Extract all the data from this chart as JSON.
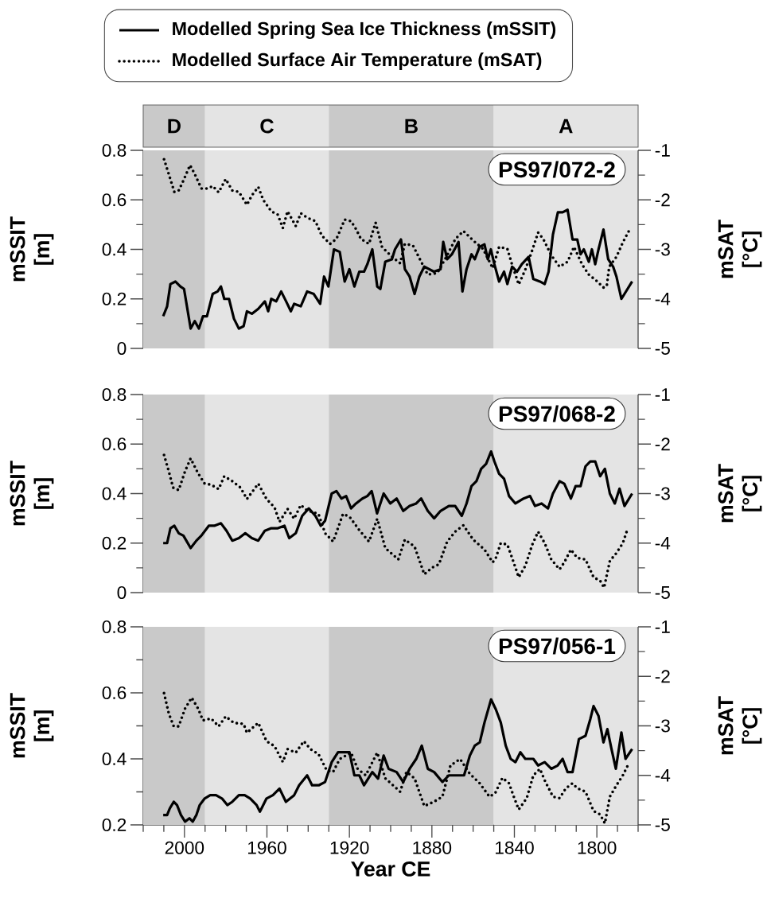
{
  "chart_data": [
    {
      "type": "line",
      "legend": "top",
      "tick_labels": "y",
      "ylabel": "mSSIT [m]",
      "y2label": "mSAT [°C]",
      "annotations": [
        "PS97/072-2"
      ],
      "xlim": [
        2020,
        1780
      ],
      "ylim": [
        0,
        0.8
      ],
      "y2lim": [
        -5,
        -1
      ],
      "yticks": [
        0,
        {
          "value": 0.1,
          "label": null
        },
        0.2,
        {
          "value": 0.3,
          "label": null
        },
        0.4,
        {
          "value": 0.5,
          "label": null
        },
        0.6,
        {
          "value": 0.7,
          "label": null
        },
        0.8
      ],
      "y2ticks": [
        -5,
        {
          "value": -4.5,
          "label": null
        },
        -4,
        {
          "value": -3.5,
          "label": null
        },
        -3,
        {
          "value": -2.5,
          "label": null
        },
        -2,
        {
          "value": -1.5,
          "label": null
        },
        -1
      ],
      "bands": [
        {
          "axis": "x",
          "from": 2020,
          "to": 1990,
          "label": "D",
          "color": "#c9c9c9"
        },
        {
          "axis": "x",
          "from": 1990,
          "to": 1930,
          "label": "C",
          "color": "#e4e4e4"
        },
        {
          "axis": "x",
          "from": 1930,
          "to": 1850,
          "label": "B",
          "color": "#c9c9c9"
        },
        {
          "axis": "x",
          "from": 1850,
          "to": 1780,
          "label": "A",
          "color": "#e4e4e4"
        }
      ],
      "series": [
        {
          "name": "Modelled Spring Sea Ice Thickness (mSSIT)",
          "color": "#000000",
          "line_style": "solid",
          "x": [
            2010.3,
            2008.4,
            2006.8,
            2004.4,
            2002.0,
            2000.2,
            1997.0,
            1995.0,
            1993.0,
            1991.0,
            1989.1,
            1986.3,
            1983.9,
            1982.3,
            1980.7,
            1978.4,
            1976.0,
            1973.6,
            1971.3,
            1969.7,
            1967.3,
            1964.2,
            1961.0,
            1959.4,
            1957.9,
            1955.5,
            1953.1,
            1950.7,
            1948.4,
            1946.8,
            1943.6,
            1940.5,
            1937.3,
            1934.2,
            1932.3,
            1930.2,
            1927.5,
            1924.7,
            1922.3,
            1920.0,
            1917.6,
            1915.2,
            1912.9,
            1911.3,
            1908.9,
            1906.5,
            1905.0,
            1902.6,
            1899.4,
            1897.9,
            1895.0,
            1893.1,
            1890.8,
            1888.4,
            1886.1,
            1883.7,
            1881.3,
            1879.0,
            1875.8,
            1874.5,
            1872.6,
            1870.3,
            1867.1,
            1865.2,
            1863.2,
            1860.8,
            1859.2,
            1856.9,
            1854.5,
            1852.9,
            1851.4,
            1849.7,
            1847.4,
            1845.0,
            1843.4,
            1841.1,
            1838.7,
            1836.4,
            1833.1,
            1830.8,
            1827.6,
            1825.3,
            1823.4,
            1821.3,
            1818.9,
            1816.6,
            1814.2,
            1811.8,
            1809.5,
            1807.9,
            1806.3,
            1803.9,
            1802.4,
            1800.8,
            1799.2,
            1796.8,
            1794.5,
            1792.1,
            1790.5,
            1788.1,
            1786.6,
            1782.9
          ],
          "values": [
            0.13,
            0.17,
            0.26,
            0.27,
            0.25,
            0.24,
            0.08,
            0.11,
            0.08,
            0.13,
            0.13,
            0.22,
            0.23,
            0.25,
            0.2,
            0.2,
            0.12,
            0.08,
            0.09,
            0.15,
            0.14,
            0.16,
            0.19,
            0.15,
            0.2,
            0.19,
            0.23,
            0.19,
            0.15,
            0.18,
            0.17,
            0.23,
            0.22,
            0.18,
            0.29,
            0.25,
            0.4,
            0.39,
            0.27,
            0.32,
            0.25,
            0.31,
            0.31,
            0.34,
            0.4,
            0.25,
            0.24,
            0.35,
            0.36,
            0.4,
            0.44,
            0.32,
            0.29,
            0.22,
            0.29,
            0.33,
            0.32,
            0.31,
            0.32,
            0.43,
            0.36,
            0.38,
            0.43,
            0.23,
            0.32,
            0.38,
            0.36,
            0.41,
            0.42,
            0.36,
            0.4,
            0.34,
            0.27,
            0.31,
            0.26,
            0.33,
            0.31,
            0.34,
            0.37,
            0.28,
            0.27,
            0.26,
            0.31,
            0.46,
            0.55,
            0.55,
            0.56,
            0.44,
            0.44,
            0.38,
            0.4,
            0.35,
            0.4,
            0.34,
            0.4,
            0.48,
            0.36,
            0.33,
            0.29,
            0.2,
            0.22,
            0.27
          ]
        },
        {
          "name": "Modelled Surface Air Temperature (mSAT)",
          "color": "#000000",
          "line_style": "dotted",
          "axis": "y2",
          "x": [
            2009.9,
            2007.6,
            2004.9,
            2002.8,
            2000.5,
            1997.3,
            1995.0,
            1991.8,
            1988.6,
            1986.3,
            1983.4,
            1980.0,
            1976.8,
            1973.6,
            1969.7,
            1967.3,
            1964.2,
            1961.8,
            1957.9,
            1954.7,
            1952.3,
            1950.0,
            1946.0,
            1943.6,
            1940.5,
            1936.5,
            1933.4,
            1929.4,
            1926.3,
            1922.3,
            1919.2,
            1916.8,
            1914.4,
            1910.5,
            1907.3,
            1904.2,
            1899.4,
            1895.4,
            1893.1,
            1889.2,
            1885.2,
            1882.0,
            1877.4,
            1872.6,
            1868.6,
            1864.7,
            1860.0,
            1855.2,
            1850.5,
            1847.4,
            1843.4,
            1841.1,
            1837.9,
            1834.7,
            1831.6,
            1828.5,
            1826.0,
            1822.1,
            1818.1,
            1814.2,
            1811.1,
            1807.1,
            1803.9,
            1800.0,
            1796.8,
            1795.2,
            1794.0,
            1790.5,
            1787.4,
            1784.5
          ],
          "values": [
            -1.18,
            -1.48,
            -1.84,
            -1.81,
            -1.61,
            -1.3,
            -1.48,
            -1.77,
            -1.77,
            -1.72,
            -1.85,
            -1.58,
            -1.81,
            -1.84,
            -2.1,
            -1.91,
            -1.74,
            -2.0,
            -2.23,
            -2.3,
            -2.57,
            -2.23,
            -2.53,
            -2.27,
            -2.36,
            -2.43,
            -2.72,
            -2.89,
            -2.79,
            -2.4,
            -2.43,
            -2.59,
            -2.79,
            -2.89,
            -2.46,
            -2.95,
            -3.15,
            -3.28,
            -2.89,
            -2.92,
            -3.25,
            -3.51,
            -3.48,
            -3.12,
            -2.79,
            -2.63,
            -2.82,
            -2.99,
            -3.38,
            -2.95,
            -2.99,
            -3.31,
            -3.71,
            -3.41,
            -3.05,
            -2.66,
            -2.79,
            -3.12,
            -3.35,
            -3.25,
            -2.95,
            -3.31,
            -3.51,
            -3.64,
            -3.77,
            -3.74,
            -3.35,
            -3.15,
            -2.86,
            -2.63
          ]
        }
      ]
    },
    {
      "type": "line",
      "tick_labels": "y",
      "ylabel": "mSSIT [m]",
      "y2label": "mSAT [°C]",
      "annotations": [
        "PS97/068-2"
      ],
      "xlim": [
        2020,
        1780
      ],
      "ylim": [
        0,
        0.8
      ],
      "y2lim": [
        -5,
        -1
      ],
      "yticks": [
        0,
        {
          "value": 0.1,
          "label": null
        },
        0.2,
        {
          "value": 0.3,
          "label": null
        },
        0.4,
        {
          "value": 0.5,
          "label": null
        },
        0.6,
        {
          "value": 0.7,
          "label": null
        },
        0.8
      ],
      "y2ticks": [
        -5,
        {
          "value": -4.5,
          "label": null
        },
        -4,
        {
          "value": -3.5,
          "label": null
        },
        -3,
        {
          "value": -2.5,
          "label": null
        },
        -2,
        {
          "value": -1.5,
          "label": null
        },
        -1
      ],
      "bands": [
        {
          "axis": "x",
          "from": 2020,
          "to": 1990,
          "color": "#c9c9c9"
        },
        {
          "axis": "x",
          "from": 1990,
          "to": 1930,
          "color": "#e4e4e4"
        },
        {
          "axis": "x",
          "from": 1930,
          "to": 1850,
          "color": "#c9c9c9"
        },
        {
          "axis": "x",
          "from": 1850,
          "to": 1780,
          "color": "#e4e4e4"
        }
      ],
      "series": [
        {
          "color": "#000000",
          "line_style": "solid",
          "x": [
            2010.3,
            2008.4,
            2006.8,
            2004.9,
            2002.8,
            2000.5,
            1997.0,
            1994.2,
            1991.8,
            1988.2,
            1985.5,
            1982.3,
            1979.6,
            1976.8,
            1973.6,
            1970.5,
            1967.3,
            1964.2,
            1961.0,
            1957.9,
            1954.7,
            1951.5,
            1949.2,
            1946.0,
            1942.9,
            1939.7,
            1936.5,
            1933.9,
            1931.8,
            1928.6,
            1926.3,
            1923.9,
            1921.6,
            1919.2,
            1916.8,
            1913.7,
            1911.3,
            1909.2,
            1906.6,
            1903.4,
            1900.2,
            1897.1,
            1893.9,
            1890.8,
            1887.6,
            1885.2,
            1882.0,
            1878.9,
            1875.8,
            1871.8,
            1868.7,
            1865.5,
            1863.2,
            1860.8,
            1858.4,
            1856.1,
            1853.7,
            1851.3,
            1849.7,
            1847.4,
            1845.0,
            1842.6,
            1839.5,
            1835.5,
            1832.4,
            1830.0,
            1826.8,
            1823.7,
            1821.3,
            1818.1,
            1815.8,
            1812.6,
            1810.3,
            1807.9,
            1805.5,
            1803.2,
            1800.8,
            1798.4,
            1796.1,
            1793.7,
            1791.3,
            1789.0,
            1786.6,
            1782.9
          ],
          "values": [
            0.2,
            0.2,
            0.26,
            0.27,
            0.24,
            0.23,
            0.18,
            0.21,
            0.23,
            0.27,
            0.27,
            0.28,
            0.25,
            0.21,
            0.22,
            0.24,
            0.22,
            0.21,
            0.25,
            0.26,
            0.26,
            0.27,
            0.22,
            0.24,
            0.31,
            0.34,
            0.31,
            0.27,
            0.29,
            0.4,
            0.41,
            0.38,
            0.39,
            0.34,
            0.36,
            0.38,
            0.39,
            0.41,
            0.32,
            0.4,
            0.36,
            0.38,
            0.33,
            0.35,
            0.36,
            0.38,
            0.33,
            0.3,
            0.33,
            0.35,
            0.35,
            0.31,
            0.36,
            0.43,
            0.45,
            0.5,
            0.52,
            0.57,
            0.53,
            0.48,
            0.46,
            0.39,
            0.36,
            0.38,
            0.39,
            0.35,
            0.36,
            0.34,
            0.4,
            0.45,
            0.44,
            0.38,
            0.43,
            0.43,
            0.51,
            0.53,
            0.53,
            0.47,
            0.5,
            0.4,
            0.36,
            0.42,
            0.35,
            0.4
          ]
        },
        {
          "color": "#000000",
          "line_style": "dotted",
          "axis": "y2",
          "x": [
            2009.9,
            2007.6,
            2005.5,
            2002.8,
            1999.7,
            1997.0,
            1993.4,
            1990.2,
            1987.1,
            1983.4,
            1980.7,
            1976.8,
            1972.8,
            1969.7,
            1964.2,
            1960.2,
            1956.3,
            1953.9,
            1950.0,
            1946.8,
            1943.6,
            1940.5,
            1935.0,
            1931.8,
            1927.9,
            1923.1,
            1919.9,
            1915.2,
            1910.5,
            1906.5,
            1902.6,
            1896.3,
            1893.1,
            1888.4,
            1883.7,
            1879.7,
            1876.6,
            1872.6,
            1868.7,
            1864.7,
            1860.0,
            1854.5,
            1850.5,
            1849.0,
            1846.6,
            1843.4,
            1841.1,
            1837.9,
            1834.7,
            1831.3,
            1828.5,
            1825.3,
            1822.1,
            1818.1,
            1815.8,
            1812.6,
            1809.5,
            1805.5,
            1801.6,
            1798.4,
            1796.5,
            1793.7,
            1790.5,
            1787.4,
            1785.0
          ],
          "values": [
            -2.22,
            -2.55,
            -2.88,
            -2.93,
            -2.55,
            -2.29,
            -2.59,
            -2.8,
            -2.82,
            -2.91,
            -2.65,
            -2.75,
            -2.88,
            -3.11,
            -2.8,
            -3.11,
            -3.28,
            -3.57,
            -3.31,
            -3.51,
            -3.23,
            -3.34,
            -3.41,
            -3.8,
            -3.97,
            -3.41,
            -3.47,
            -3.74,
            -3.97,
            -3.51,
            -4.1,
            -4.33,
            -3.93,
            -4.07,
            -4.63,
            -4.49,
            -4.43,
            -3.97,
            -3.77,
            -3.64,
            -3.93,
            -4.13,
            -4.39,
            -4.3,
            -4.0,
            -4.03,
            -4.3,
            -4.69,
            -4.46,
            -4.03,
            -3.77,
            -4.0,
            -4.33,
            -4.53,
            -4.39,
            -4.13,
            -4.3,
            -4.33,
            -4.69,
            -4.76,
            -4.9,
            -4.36,
            -4.2,
            -4.0,
            -3.7
          ]
        }
      ]
    },
    {
      "type": "line",
      "xlabel": "Year CE",
      "ylabel": "mSSIT [m]",
      "y2label": "mSAT [°C]",
      "annotations": [
        "PS97/056-1"
      ],
      "xlim": [
        2020,
        1780
      ],
      "ylim": [
        0.2,
        0.8
      ],
      "y2lim": [
        -5,
        -1
      ],
      "xticks": [
        {
          "value": 2020,
          "label": null
        },
        {
          "value": 2010,
          "label": null
        },
        2000,
        {
          "value": 1990,
          "label": null
        },
        {
          "value": 1980,
          "label": null
        },
        {
          "value": 1970,
          "label": null
        },
        1960,
        {
          "value": 1950,
          "label": null
        },
        {
          "value": 1940,
          "label": null
        },
        {
          "value": 1930,
          "label": null
        },
        1920,
        {
          "value": 1910,
          "label": null
        },
        {
          "value": 1900,
          "label": null
        },
        {
          "value": 1890,
          "label": null
        },
        1880,
        {
          "value": 1870,
          "label": null
        },
        {
          "value": 1860,
          "label": null
        },
        {
          "value": 1850,
          "label": null
        },
        1840,
        {
          "value": 1830,
          "label": null
        },
        {
          "value": 1820,
          "label": null
        },
        {
          "value": 1810,
          "label": null
        },
        1800,
        {
          "value": 1790,
          "label": null
        },
        {
          "value": 1780,
          "label": null
        }
      ],
      "yticks": [
        0.2,
        {
          "value": 0.3,
          "label": null
        },
        0.4,
        {
          "value": 0.5,
          "label": null
        },
        0.6,
        {
          "value": 0.7,
          "label": null
        },
        0.8
      ],
      "y2ticks": [
        -5,
        {
          "value": -4.5,
          "label": null
        },
        -4,
        {
          "value": -3.5,
          "label": null
        },
        -3,
        {
          "value": -2.5,
          "label": null
        },
        -2,
        {
          "value": -1.5,
          "label": null
        },
        -1
      ],
      "bands": [
        {
          "axis": "x",
          "from": 2020,
          "to": 1990,
          "color": "#c9c9c9"
        },
        {
          "axis": "x",
          "from": 1990,
          "to": 1930,
          "color": "#e4e4e4"
        },
        {
          "axis": "x",
          "from": 1930,
          "to": 1850,
          "color": "#c9c9c9"
        },
        {
          "axis": "x",
          "from": 1850,
          "to": 1780,
          "color": "#e4e4e4"
        }
      ],
      "series": [
        {
          "color": "#000000",
          "line_style": "solid",
          "x": [
            2010.3,
            2008.4,
            2007.1,
            2005.2,
            2003.6,
            2001.7,
            1999.7,
            1997.6,
            1996.0,
            1994.2,
            1992.6,
            1990.2,
            1987.5,
            1984.7,
            1981.8,
            1979.2,
            1976.8,
            1973.6,
            1970.8,
            1968.1,
            1965.0,
            1963.4,
            1960.2,
            1957.1,
            1953.9,
            1950.8,
            1946.8,
            1944.4,
            1940.5,
            1938.1,
            1934.9,
            1931.8,
            1928.6,
            1925.5,
            1922.3,
            1920.0,
            1917.6,
            1915.2,
            1912.9,
            1908.9,
            1906.1,
            1903.4,
            1901.0,
            1897.1,
            1893.9,
            1890.8,
            1887.6,
            1884.9,
            1882.0,
            1878.9,
            1874.9,
            1871.8,
            1867.9,
            1864.4,
            1861.6,
            1859.2,
            1856.8,
            1854.5,
            1851.3,
            1849.0,
            1846.6,
            1844.2,
            1841.8,
            1839.5,
            1837.1,
            1834.7,
            1830.8,
            1828.5,
            1825.3,
            1822.1,
            1819.0,
            1816.6,
            1814.2,
            1811.8,
            1808.7,
            1805.5,
            1803.2,
            1801.6,
            1799.2,
            1796.8,
            1794.9,
            1792.9,
            1790.8,
            1788.1,
            1786.1,
            1782.9
          ],
          "values": [
            0.23,
            0.23,
            0.25,
            0.27,
            0.26,
            0.23,
            0.21,
            0.22,
            0.21,
            0.23,
            0.26,
            0.28,
            0.29,
            0.29,
            0.28,
            0.26,
            0.27,
            0.29,
            0.29,
            0.28,
            0.26,
            0.24,
            0.28,
            0.29,
            0.31,
            0.27,
            0.29,
            0.32,
            0.35,
            0.32,
            0.32,
            0.33,
            0.39,
            0.42,
            0.42,
            0.42,
            0.35,
            0.35,
            0.32,
            0.36,
            0.34,
            0.41,
            0.37,
            0.36,
            0.33,
            0.37,
            0.4,
            0.44,
            0.37,
            0.36,
            0.33,
            0.35,
            0.35,
            0.35,
            0.41,
            0.44,
            0.45,
            0.51,
            0.58,
            0.55,
            0.51,
            0.44,
            0.4,
            0.39,
            0.42,
            0.4,
            0.4,
            0.38,
            0.39,
            0.37,
            0.38,
            0.4,
            0.36,
            0.36,
            0.46,
            0.47,
            0.52,
            0.56,
            0.53,
            0.45,
            0.49,
            0.43,
            0.37,
            0.48,
            0.4,
            0.43
          ]
        },
        {
          "color": "#000000",
          "line_style": "dotted",
          "axis": "y2",
          "x": [
            2009.9,
            2007.6,
            2005.2,
            2002.8,
            1999.7,
            1996.5,
            1993.4,
            1991.0,
            1987.1,
            1983.4,
            1980.0,
            1976.0,
            1971.3,
            1969.7,
            1964.2,
            1960.2,
            1956.3,
            1952.3,
            1950.0,
            1946.0,
            1942.1,
            1938.9,
            1935.0,
            1931.0,
            1927.9,
            1924.7,
            1919.2,
            1916.0,
            1912.1,
            1906.5,
            1902.6,
            1895.4,
            1892.3,
            1888.4,
            1883.7,
            1878.9,
            1874.9,
            1871.0,
            1866.3,
            1861.6,
            1856.8,
            1852.1,
            1849.3,
            1845.8,
            1842.6,
            1840.3,
            1837.9,
            1834.0,
            1830.8,
            1827.6,
            1825.3,
            1821.3,
            1818.1,
            1815.0,
            1811.8,
            1809.5,
            1805.5,
            1801.6,
            1798.4,
            1796.1,
            1793.7,
            1790.5,
            1787.4,
            1785.0
          ],
          "values": [
            -2.34,
            -2.75,
            -3.01,
            -3.01,
            -2.65,
            -2.43,
            -2.65,
            -2.89,
            -2.85,
            -3.01,
            -2.81,
            -2.94,
            -2.96,
            -3.14,
            -2.94,
            -3.31,
            -3.41,
            -3.73,
            -3.47,
            -3.54,
            -3.31,
            -3.47,
            -3.57,
            -3.9,
            -3.93,
            -3.67,
            -3.54,
            -3.87,
            -4.0,
            -3.54,
            -4.06,
            -4.33,
            -3.93,
            -4.06,
            -4.62,
            -4.53,
            -4.43,
            -3.8,
            -3.67,
            -3.97,
            -4.16,
            -4.43,
            -4.36,
            -4.05,
            -4.16,
            -4.43,
            -4.69,
            -4.46,
            -4.0,
            -3.87,
            -4.1,
            -4.43,
            -4.46,
            -4.26,
            -4.16,
            -4.26,
            -4.33,
            -4.72,
            -4.79,
            -4.97,
            -4.43,
            -4.2,
            -4.0,
            -3.8
          ]
        }
      ]
    }
  ]
}
